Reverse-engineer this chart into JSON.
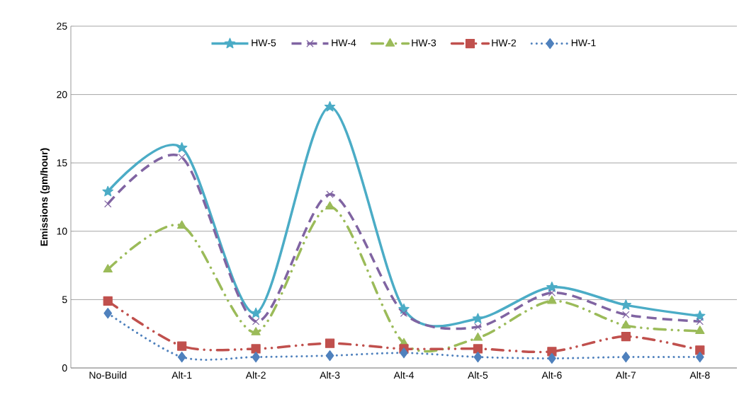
{
  "chart_data": {
    "type": "line",
    "ylabel": "Emissions (gm/hour)",
    "categories": [
      "No-Build",
      "Alt-1",
      "Alt-2",
      "Alt-3",
      "Alt-4",
      "Alt-5",
      "Alt-6",
      "Alt-7",
      "Alt-8"
    ],
    "series": [
      {
        "name": "HW-5",
        "color": "#4bacc6",
        "marker": "star",
        "line_style": "solid",
        "values": [
          12.9,
          16.1,
          4.0,
          19.1,
          4.3,
          3.6,
          5.9,
          4.6,
          3.8
        ]
      },
      {
        "name": "HW-4",
        "color": "#8064a2",
        "marker": "cross",
        "line_style": "dashed",
        "values": [
          12.0,
          15.4,
          3.4,
          12.7,
          4.0,
          3.0,
          5.5,
          3.9,
          3.4
        ]
      },
      {
        "name": "HW-3",
        "color": "#9bbb59",
        "marker": "triangle",
        "line_style": "dashdot",
        "values": [
          7.2,
          10.4,
          2.6,
          11.8,
          1.8,
          2.2,
          4.9,
          3.1,
          2.7
        ]
      },
      {
        "name": "HW-2",
        "color": "#c0504d",
        "marker": "square",
        "line_style": "dashdot",
        "values": [
          4.9,
          1.6,
          1.4,
          1.8,
          1.4,
          1.4,
          1.2,
          2.3,
          1.3
        ]
      },
      {
        "name": "HW-1",
        "color": "#4f81bd",
        "marker": "diamond",
        "line_style": "dotted",
        "values": [
          4.0,
          0.8,
          0.8,
          0.9,
          1.1,
          0.8,
          0.7,
          0.8,
          0.8
        ]
      }
    ],
    "ylim": [
      0,
      25
    ],
    "yticks": [
      0,
      5,
      10,
      15,
      20,
      25
    ],
    "grid": "y",
    "legend": "top"
  }
}
